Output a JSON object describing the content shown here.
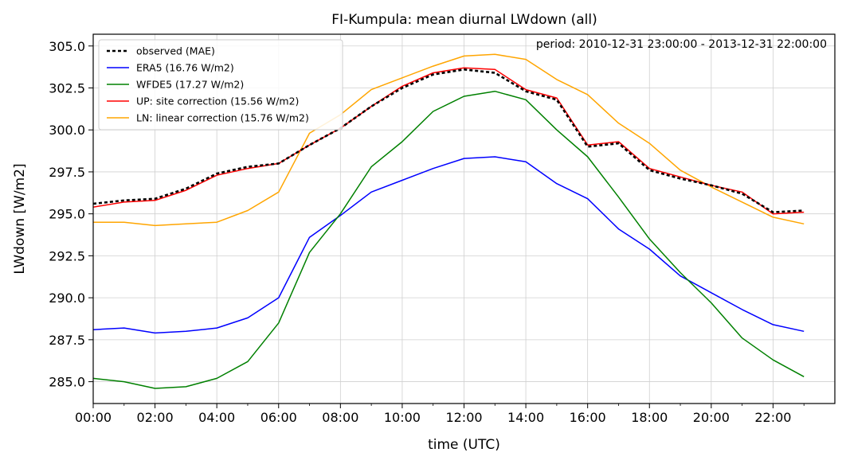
{
  "chart_data": {
    "type": "line",
    "title": "FI-Kumpula: mean diurnal LWdown (all)",
    "xlabel": "time (UTC)",
    "ylabel": "LWdown [W/m2]",
    "annotation": "period: 2010-12-31 23:00:00 - 2013-12-31 22:00:00",
    "x": [
      "00:00",
      "01:00",
      "02:00",
      "03:00",
      "04:00",
      "05:00",
      "06:00",
      "07:00",
      "08:00",
      "09:00",
      "10:00",
      "11:00",
      "12:00",
      "13:00",
      "14:00",
      "15:00",
      "16:00",
      "17:00",
      "18:00",
      "19:00",
      "20:00",
      "21:00",
      "22:00",
      "23:00"
    ],
    "x_ticks": [
      "00:00",
      "02:00",
      "04:00",
      "06:00",
      "08:00",
      "10:00",
      "12:00",
      "14:00",
      "16:00",
      "18:00",
      "20:00",
      "22:00"
    ],
    "xlim": [
      "00:00",
      "24:00"
    ],
    "ylim": [
      283.7,
      305.7
    ],
    "y_ticks": [
      "285.0",
      "287.5",
      "290.0",
      "292.5",
      "295.0",
      "297.5",
      "300.0",
      "302.5",
      "305.0"
    ],
    "grid": true,
    "legend_position": "top-left",
    "series": [
      {
        "name": "observed (MAE)",
        "color": "#000000",
        "style": "dotted",
        "values": [
          295.6,
          295.8,
          295.9,
          296.5,
          297.4,
          297.8,
          298.0,
          299.1,
          300.1,
          301.4,
          302.5,
          303.3,
          303.6,
          303.4,
          302.3,
          301.8,
          299.0,
          299.2,
          297.6,
          297.1,
          296.7,
          296.2,
          295.1,
          295.2
        ]
      },
      {
        "name": "ERA5 (16.76 W/m2)",
        "color": "#0000ff",
        "style": "solid",
        "values": [
          288.1,
          288.2,
          287.9,
          288.0,
          288.2,
          288.8,
          290.0,
          293.6,
          294.9,
          296.3,
          297.0,
          297.7,
          298.3,
          298.4,
          298.1,
          296.8,
          295.9,
          294.1,
          292.9,
          291.3,
          290.3,
          289.3,
          288.4,
          288.0
        ]
      },
      {
        "name": "WFDE5 (17.27 W/m2)",
        "color": "#008000",
        "style": "solid",
        "values": [
          285.2,
          285.0,
          284.6,
          284.7,
          285.2,
          286.2,
          288.5,
          292.7,
          295.0,
          297.8,
          299.3,
          301.1,
          302.0,
          302.3,
          301.8,
          300.0,
          298.4,
          296.0,
          293.5,
          291.5,
          289.7,
          287.6,
          286.3,
          285.3
        ]
      },
      {
        "name": "UP: site correction (15.56 W/m2)",
        "color": "#ff0000",
        "style": "solid",
        "values": [
          295.4,
          295.7,
          295.8,
          296.4,
          297.3,
          297.7,
          298.0,
          299.1,
          300.1,
          301.4,
          302.6,
          303.4,
          303.7,
          303.6,
          302.4,
          301.9,
          299.1,
          299.3,
          297.7,
          297.2,
          296.7,
          296.3,
          295.0,
          295.1
        ]
      },
      {
        "name": "LN: linear correction (15.76 W/m2)",
        "color": "#ffa500",
        "style": "solid",
        "values": [
          294.5,
          294.5,
          294.3,
          294.4,
          294.5,
          295.2,
          296.3,
          299.8,
          300.9,
          302.4,
          303.1,
          303.8,
          304.4,
          304.5,
          304.2,
          303.0,
          302.1,
          300.4,
          299.2,
          297.6,
          296.6,
          295.7,
          294.8,
          294.4
        ]
      }
    ]
  }
}
